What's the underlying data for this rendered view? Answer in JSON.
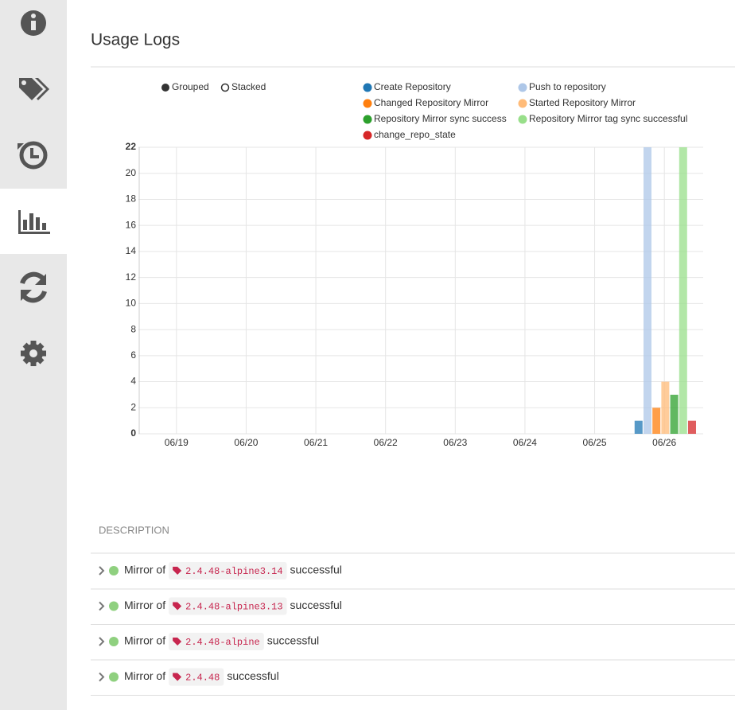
{
  "page": {
    "title": "Usage Logs"
  },
  "chart_controls": [
    "Grouped",
    "Stacked"
  ],
  "chart_data": {
    "type": "bar",
    "categories": [
      "06/19",
      "06/20",
      "06/21",
      "06/22",
      "06/23",
      "06/24",
      "06/25",
      "06/26"
    ],
    "series": [
      {
        "name": "Create Repository",
        "color": "#1f77b4",
        "values": [
          0,
          0,
          0,
          0,
          0,
          0,
          0,
          1
        ]
      },
      {
        "name": "Push to repository",
        "color": "#aec7e8",
        "values": [
          0,
          0,
          0,
          0,
          0,
          0,
          0,
          22
        ]
      },
      {
        "name": "Changed Repository Mirror",
        "color": "#ff7f0e",
        "values": [
          0,
          0,
          0,
          0,
          0,
          0,
          0,
          2
        ]
      },
      {
        "name": "Started Repository Mirror",
        "color": "#ffbb78",
        "values": [
          0,
          0,
          0,
          0,
          0,
          0,
          0,
          4
        ]
      },
      {
        "name": "Repository Mirror sync success",
        "color": "#2ca02c",
        "values": [
          0,
          0,
          0,
          0,
          0,
          0,
          0,
          3
        ]
      },
      {
        "name": "Repository Mirror tag sync successful",
        "color": "#98df8a",
        "values": [
          0,
          0,
          0,
          0,
          0,
          0,
          0,
          22
        ]
      },
      {
        "name": "change_repo_state",
        "color": "#d62728",
        "values": [
          0,
          0,
          0,
          0,
          0,
          0,
          0,
          1
        ]
      }
    ],
    "ylim": [
      0,
      22
    ],
    "yticks": [
      0,
      2,
      4,
      6,
      8,
      10,
      12,
      14,
      16,
      18,
      20,
      22
    ],
    "grid": true
  },
  "table": {
    "header": "DESCRIPTION",
    "rows": [
      {
        "prefix": "Mirror of",
        "tag": "2.4.48-alpine3.14",
        "suffix": "successful"
      },
      {
        "prefix": "Mirror of",
        "tag": "2.4.48-alpine3.13",
        "suffix": "successful"
      },
      {
        "prefix": "Mirror of",
        "tag": "2.4.48-alpine",
        "suffix": "successful"
      },
      {
        "prefix": "Mirror of",
        "tag": "2.4.48",
        "suffix": "successful"
      }
    ]
  }
}
